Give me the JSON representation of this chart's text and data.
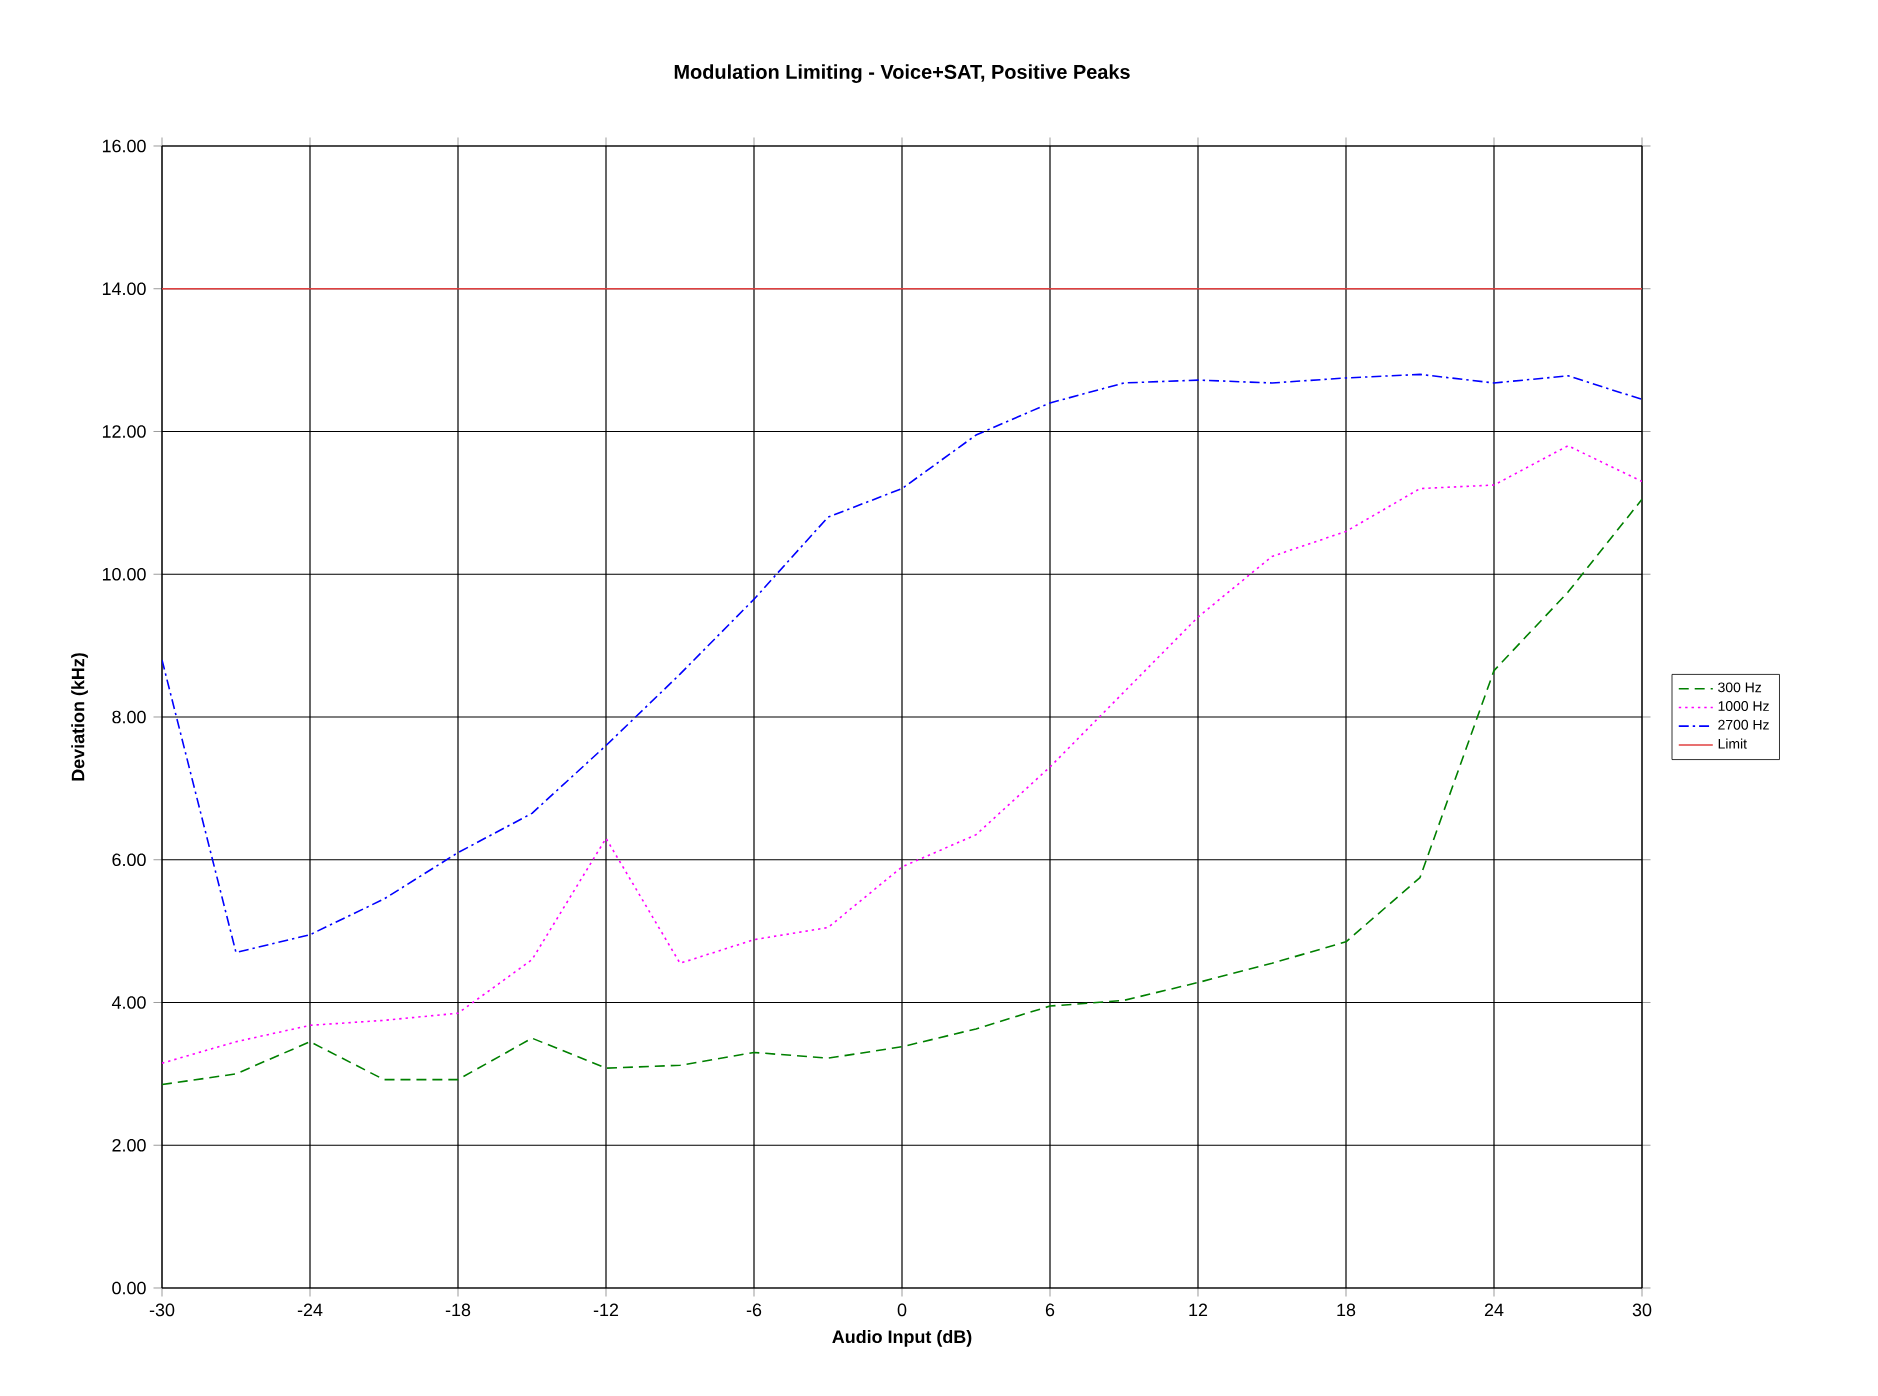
{
  "chart_data": {
    "type": "line",
    "title": "Modulation Limiting - Voice+SAT, Positive Peaks",
    "xlabel": "Audio Input (dB)",
    "ylabel": "Deviation (kHz)",
    "x": [
      -30,
      -27,
      -24,
      -21,
      -18,
      -15,
      -12,
      -9,
      -6,
      -3,
      0,
      3,
      6,
      9,
      12,
      15,
      18,
      21,
      24,
      27,
      30
    ],
    "series": [
      {
        "name": "300 Hz",
        "color": "#008000",
        "line_style": "dashed",
        "values": [
          2.85,
          3.0,
          3.45,
          2.92,
          2.92,
          3.5,
          3.08,
          3.12,
          3.3,
          3.22,
          3.38,
          3.63,
          3.95,
          4.03,
          4.28,
          4.55,
          4.85,
          5.75,
          8.65,
          9.75,
          11.05
        ]
      },
      {
        "name": "1000 Hz",
        "color": "#ff00ff",
        "line_style": "dotted",
        "values": [
          3.15,
          3.45,
          3.68,
          3.75,
          3.85,
          4.6,
          6.3,
          4.55,
          4.88,
          5.05,
          5.9,
          6.35,
          7.3,
          8.35,
          9.4,
          10.25,
          10.6,
          11.2,
          11.25,
          11.8,
          11.3
        ]
      },
      {
        "name": "2700 Hz",
        "color": "#0000ff",
        "line_style": "dashdot",
        "values": [
          8.8,
          4.7,
          4.95,
          5.45,
          6.1,
          6.65,
          7.6,
          8.6,
          9.65,
          10.8,
          11.2,
          11.95,
          12.4,
          12.68,
          12.72,
          12.68,
          12.75,
          12.8,
          12.68,
          12.78,
          12.45
        ]
      },
      {
        "name": "Limit",
        "color": "#e04040",
        "line_style": "solid",
        "values": [
          14,
          14,
          14,
          14,
          14,
          14,
          14,
          14,
          14,
          14,
          14,
          14,
          14,
          14,
          14,
          14,
          14,
          14,
          14,
          14,
          14
        ]
      }
    ],
    "xlim": [
      -30,
      30
    ],
    "xticks": [
      -30,
      -24,
      -18,
      -12,
      -6,
      0,
      6,
      12,
      18,
      24,
      30
    ],
    "ylim": [
      0,
      16
    ],
    "yticks": [
      {
        "value": 0,
        "label": "0.00"
      },
      {
        "value": 2,
        "label": "2.00"
      },
      {
        "value": 4,
        "label": "4.00"
      },
      {
        "value": 6,
        "label": "6.00"
      },
      {
        "value": 8,
        "label": "8.00"
      },
      {
        "value": 10,
        "label": "10.00"
      },
      {
        "value": 12,
        "label": "12.00"
      },
      {
        "value": 14,
        "label": "14.00"
      },
      {
        "value": 16,
        "label": "16.00"
      }
    ],
    "grid": true,
    "legend": "right",
    "marker": "none"
  }
}
